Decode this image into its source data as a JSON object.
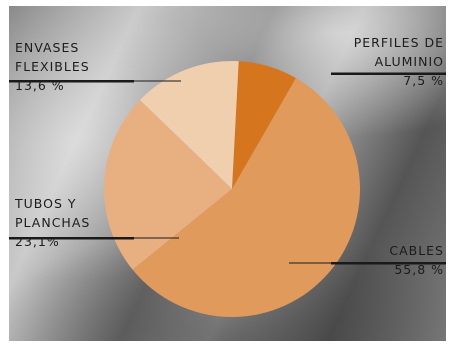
{
  "chart_data": {
    "type": "pie",
    "title": "",
    "slices": [
      {
        "name_lines": [
          "PERFILES DE",
          "ALUMINIO"
        ],
        "value_label": "7,5 %",
        "value": 7.5,
        "color": "#d5761e"
      },
      {
        "name_lines": [
          "CABLES"
        ],
        "value_label": "55,8 %",
        "value": 55.8,
        "color": "#e09a5c"
      },
      {
        "name_lines": [
          "TUBOS Y",
          "PLANCHAS"
        ],
        "value_label": "23,1%",
        "value": 23.1,
        "color": "#e8b081"
      },
      {
        "name_lines": [
          "ENVASES",
          "FLEXIBLES"
        ],
        "value_label": "13,6 %",
        "value": 13.6,
        "color": "#f0cfaf"
      }
    ],
    "start_angle_deg": 3,
    "direction": "clockwise",
    "legend": "none"
  }
}
